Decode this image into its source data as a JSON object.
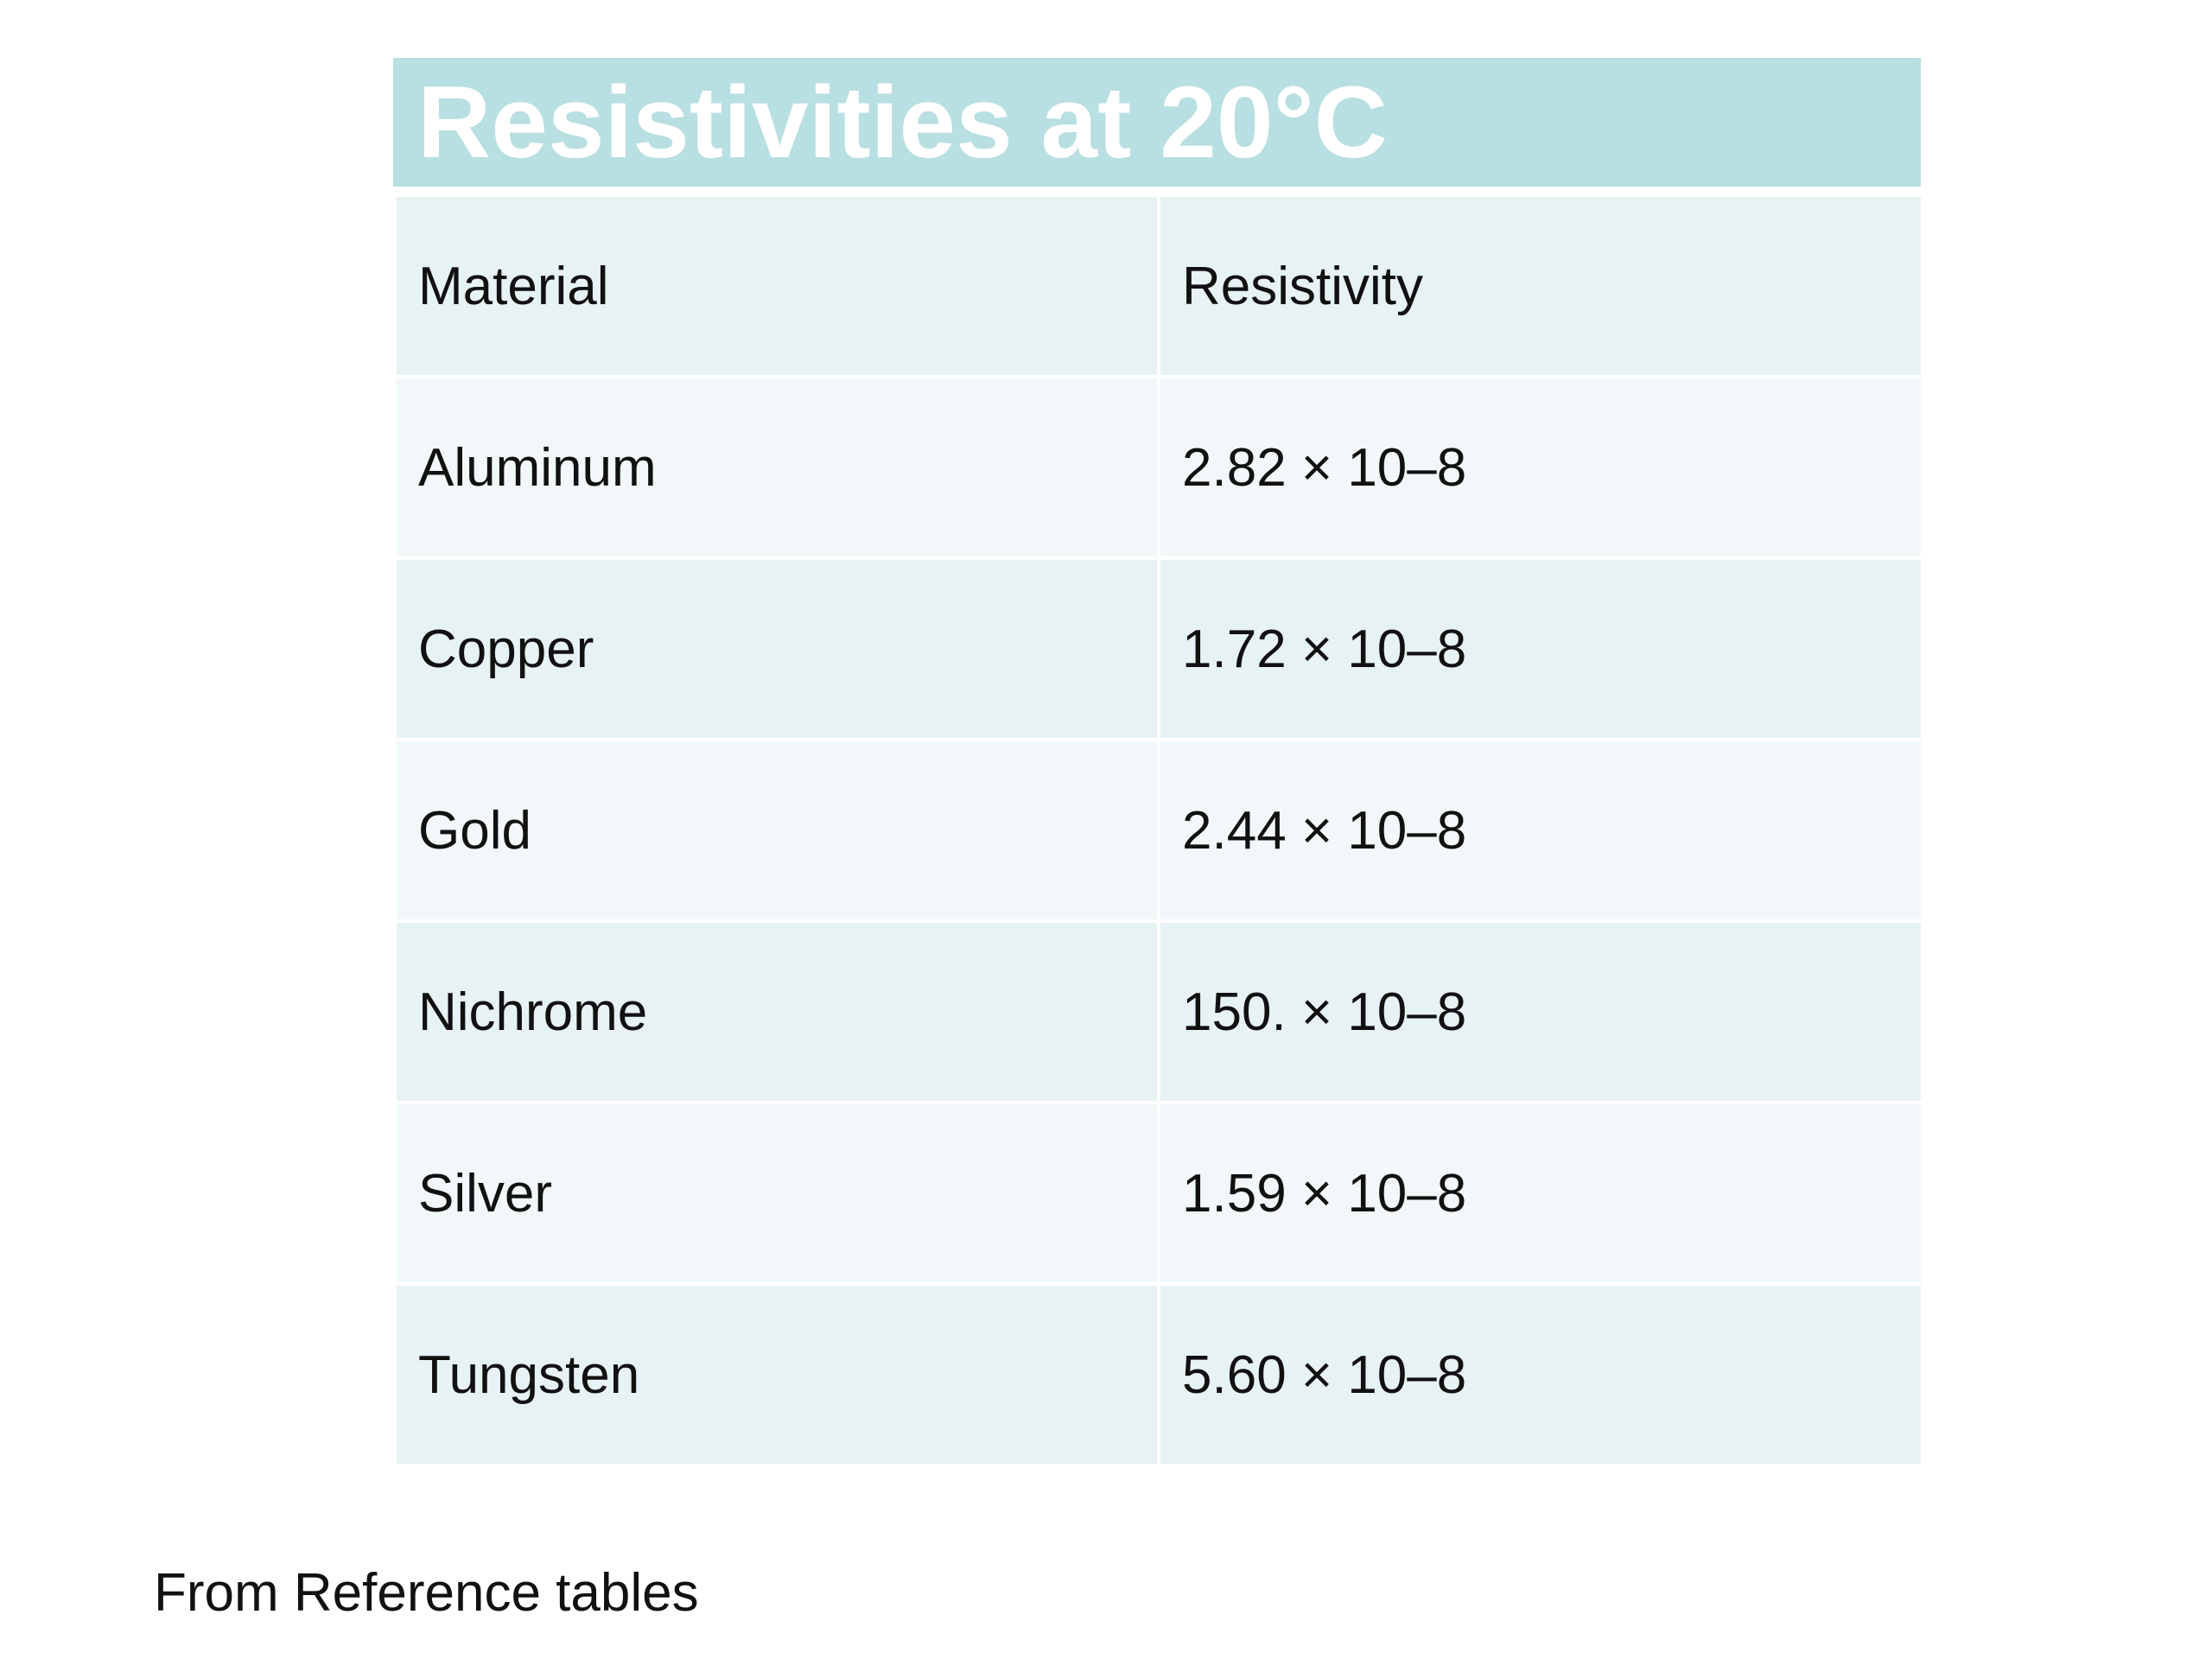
{
  "title": "Resistivities at 20°C",
  "table": {
    "headers": [
      "Material",
      "Resistivity"
    ],
    "rows": [
      {
        "material": "Aluminum",
        "resistivity": "2.82 × 10–8"
      },
      {
        "material": "Copper",
        "resistivity": "1.72 × 10–8"
      },
      {
        "material": "Gold",
        "resistivity": "2.44 × 10–8"
      },
      {
        "material": "Nichrome",
        "resistivity": "150. × 10–8"
      },
      {
        "material": "Silver",
        "resistivity": "1.59 × 10–8"
      },
      {
        "material": "Tungsten",
        "resistivity": "5.60 × 10–8"
      }
    ]
  },
  "footnote": "From Reference tables",
  "colors": {
    "title_background": "#b8dfe2",
    "title_text": "#ffffff",
    "row_dark": "#e7f2f4",
    "row_light": "#f2f8f9"
  }
}
